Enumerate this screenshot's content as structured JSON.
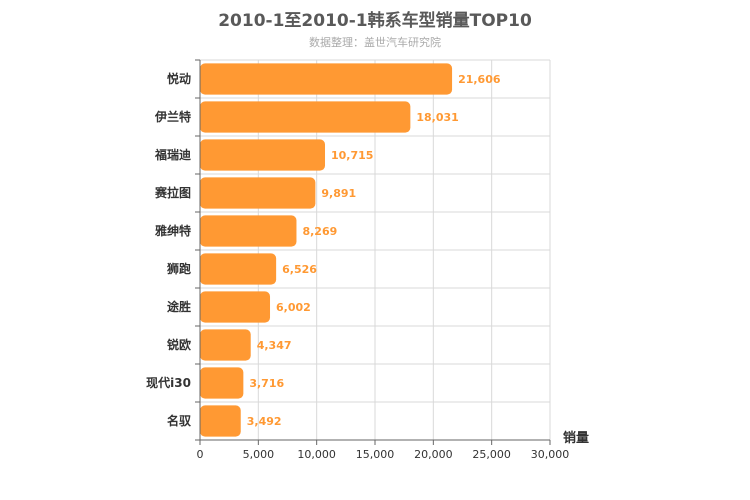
{
  "chart_data": {
    "type": "bar",
    "orientation": "horizontal",
    "title": "2010-1至2010-1韩系车型销量TOP10",
    "subtitle": "数据整理：盖世汽车研究院",
    "xlabel": "",
    "ylabel": "销量",
    "categories": [
      "悦动",
      "伊兰特",
      "福瑞迪",
      "赛拉图",
      "雅绅特",
      "狮跑",
      "途胜",
      "锐欧",
      "现代i30",
      "名驭"
    ],
    "values": [
      21606,
      18031,
      10715,
      9891,
      8269,
      6526,
      6002,
      4347,
      3716,
      3492
    ],
    "data_labels": [
      "21,606",
      "18,031",
      "10,715",
      "9,891",
      "8,269",
      "6,526",
      "6,002",
      "4,347",
      "3,716",
      "3,492"
    ],
    "xlim": [
      0,
      30000
    ],
    "xticks": [
      0,
      5000,
      10000,
      15000,
      20000,
      25000,
      30000
    ],
    "xtick_labels": [
      "0",
      "5,000",
      "10,000",
      "15,000",
      "20,000",
      "25,000",
      "30,000"
    ],
    "grid": true,
    "bar_color": "#ff9933",
    "label_color": "#ff9933",
    "legend": "none"
  }
}
